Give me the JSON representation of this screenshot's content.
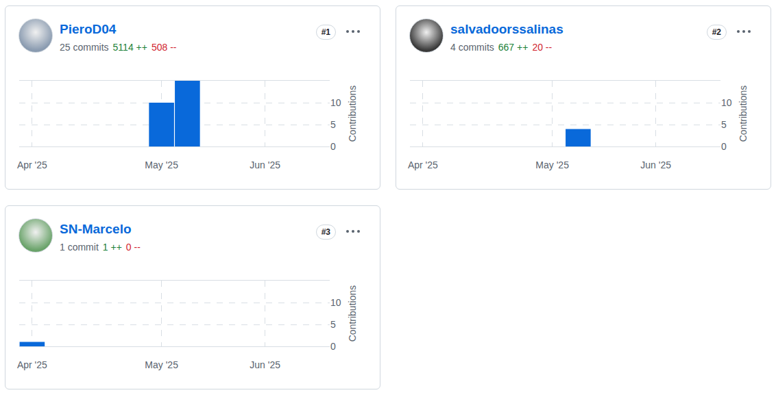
{
  "cards": [
    {
      "name": "PieroD04",
      "rank": "#1",
      "commits": "25 commits",
      "additions": "5114 ++",
      "deletions": "508 --"
    },
    {
      "name": "salvadoorssalinas",
      "rank": "#2",
      "commits": "4 commits",
      "additions": "667 ++",
      "deletions": "20 --"
    },
    {
      "name": "SN-Marcelo",
      "rank": "#3",
      "commits": "1 commit",
      "additions": "1 ++",
      "deletions": "0 --"
    }
  ],
  "chart_data": [
    {
      "type": "bar",
      "categories": [
        "Apr '25",
        null,
        null,
        null,
        null,
        "May '25",
        null,
        null,
        null,
        "Jun '25",
        null,
        null
      ],
      "values": [
        0,
        0,
        0,
        0,
        0,
        10,
        15,
        0,
        0,
        0,
        0,
        0
      ],
      "color": "#0969da",
      "ylim": [
        0,
        15
      ],
      "yticks": [
        0,
        5,
        10
      ],
      "y_label": "Contributions",
      "grid": true
    },
    {
      "type": "bar",
      "categories": [
        "Apr '25",
        null,
        null,
        null,
        null,
        "May '25",
        null,
        null,
        null,
        "Jun '25",
        null,
        null
      ],
      "values": [
        0,
        0,
        0,
        0,
        0,
        0,
        4,
        0,
        0,
        0,
        0,
        0
      ],
      "color": "#0969da",
      "ylim": [
        0,
        15
      ],
      "yticks": [
        0,
        5,
        10
      ],
      "y_label": "Contributions",
      "grid": true
    },
    {
      "type": "bar",
      "categories": [
        "Apr '25",
        null,
        null,
        null,
        null,
        "May '25",
        null,
        null,
        null,
        "Jun '25",
        null,
        null
      ],
      "values": [
        1,
        0,
        0,
        0,
        0,
        0,
        0,
        0,
        0,
        0,
        0,
        0
      ],
      "color": "#0969da",
      "ylim": [
        0,
        15
      ],
      "yticks": [
        0,
        5,
        10
      ],
      "y_label": "Contributions",
      "grid": true
    }
  ]
}
